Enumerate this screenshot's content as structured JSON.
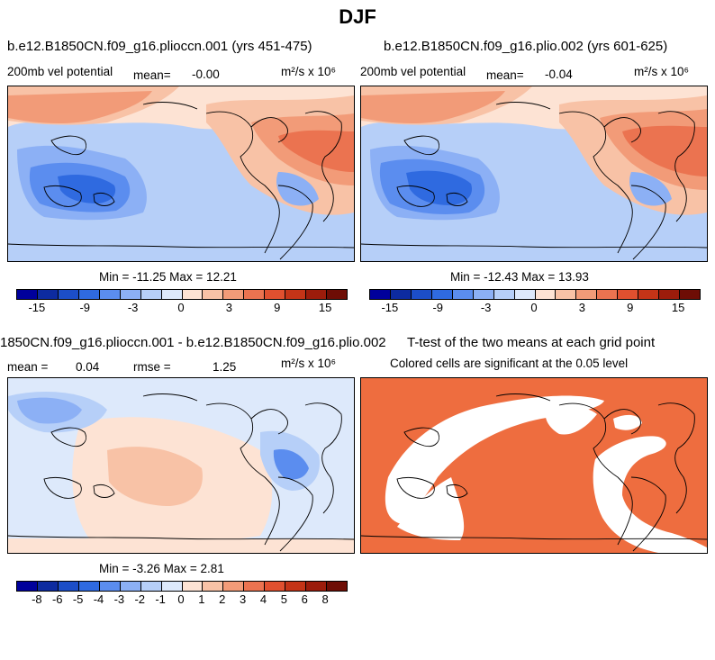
{
  "suptitle": "DJF",
  "chart_data": [
    {
      "type": "heatmap",
      "title": "b.e12.B1850CN.f09_g16.plioccn.001 (yrs 451-475)",
      "left_label": "200mb vel potential",
      "mean_label": "mean=",
      "mean_value": "-0.00",
      "units": "m²/s x 10⁶",
      "min_max": "Min = -11.25 Max = 12.21",
      "colorbar_ticks": [
        "-15",
        "-9",
        "-3",
        "0",
        "3",
        "9",
        "15"
      ],
      "colorbar_colors": [
        "#00009b",
        "#0d2ba0",
        "#1c4ec8",
        "#2f6ae0",
        "#5b8def",
        "#8cb0f5",
        "#b6cff8",
        "#dde9fb",
        "#fde3d4",
        "#f8c2a6",
        "#f29b78",
        "#eb7350",
        "#e0502f",
        "#c43417",
        "#9c1c0b",
        "#6e0d05"
      ]
    },
    {
      "type": "heatmap",
      "title": "b.e12.B1850CN.f09_g16.plio.002 (yrs 601-625)",
      "left_label": "200mb vel potential",
      "mean_label": "mean=",
      "mean_value": "-0.04",
      "units": "m²/s x 10⁶",
      "min_max": "Min = -12.43 Max = 13.93",
      "colorbar_ticks": [
        "-15",
        "-9",
        "-3",
        "0",
        "3",
        "9",
        "15"
      ]
    },
    {
      "type": "heatmap",
      "title": "1850CN.f09_g16.plioccn.001 - b.e12.B1850CN.f09_g16.plio.002",
      "mean_label": "mean =",
      "mean_value": "0.04",
      "rmse_label": "rmse =",
      "rmse_value": "1.25",
      "units": "m²/s x 10⁶",
      "min_max": "Min = -3.26 Max = 2.81",
      "colorbar_ticks": [
        "-8",
        "-6",
        "-5",
        "-4",
        "-3",
        "-2",
        "-1",
        "0",
        "1",
        "2",
        "3",
        "4",
        "5",
        "6",
        "8"
      ]
    },
    {
      "type": "heatmap",
      "title": "T-test of the two means at each grid point",
      "subtitle": "Colored cells are significant at the 0.05 level"
    }
  ]
}
